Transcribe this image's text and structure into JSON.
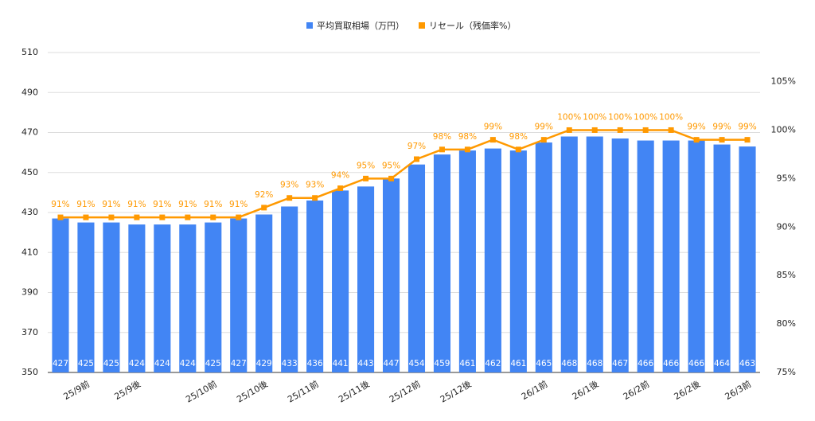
{
  "chart_data": {
    "type": "bar-line",
    "categories": [
      null,
      "25/9前",
      null,
      "25/9後",
      null,
      null,
      "25/10前",
      null,
      "25/10後",
      null,
      "25/11前",
      null,
      "25/11後",
      null,
      "25/12前",
      null,
      "25/12後",
      null,
      null,
      "26/1前",
      null,
      "26/1後",
      null,
      "26/2前",
      null,
      "26/2後",
      null,
      "26/3前"
    ],
    "series": [
      {
        "name": "平均買取相場（万円）",
        "type": "bar",
        "color": "#4285f4",
        "values": [
          427,
          425,
          425,
          424,
          424,
          424,
          425,
          427,
          429,
          433,
          436,
          441,
          443,
          447,
          454,
          459,
          461,
          462,
          461,
          465,
          468,
          468,
          467,
          466,
          466,
          466,
          464,
          463
        ]
      },
      {
        "name": "リセール（残価率%）",
        "type": "line",
        "axis": "y2",
        "color": "#ff9900",
        "values": [
          91,
          91,
          91,
          91,
          91,
          91,
          91,
          91,
          92,
          93,
          93,
          94,
          95,
          95,
          97,
          98,
          98,
          99,
          98,
          99,
          100,
          100,
          100,
          100,
          100,
          99,
          99,
          99
        ],
        "value_labels": [
          "91%",
          "91%",
          "91%",
          "91%",
          "91%",
          "91%",
          "91%",
          "91%",
          "92%",
          "93%",
          "93%",
          "94%",
          "95%",
          "95%",
          "97%",
          "98%",
          "98%",
          "99%",
          "98%",
          "99%",
          "100%",
          "100%",
          "100%",
          "100%",
          "100%",
          "99%",
          "99%",
          "99%"
        ]
      }
    ],
    "ylim": [
      350,
      510
    ],
    "yticks": [
      350,
      370,
      390,
      410,
      430,
      450,
      470,
      490,
      510
    ],
    "y2lim": [
      75,
      108
    ],
    "y2ticks": [
      {
        "value": 75,
        "label": "75%"
      },
      {
        "value": 80,
        "label": "80%"
      },
      {
        "value": 85,
        "label": "85%"
      },
      {
        "value": 90,
        "label": "90%"
      },
      {
        "value": 95,
        "label": "95%"
      },
      {
        "value": 100,
        "label": "100%"
      },
      {
        "value": 105,
        "label": "105%"
      }
    ],
    "grid": true,
    "legend": "top"
  }
}
